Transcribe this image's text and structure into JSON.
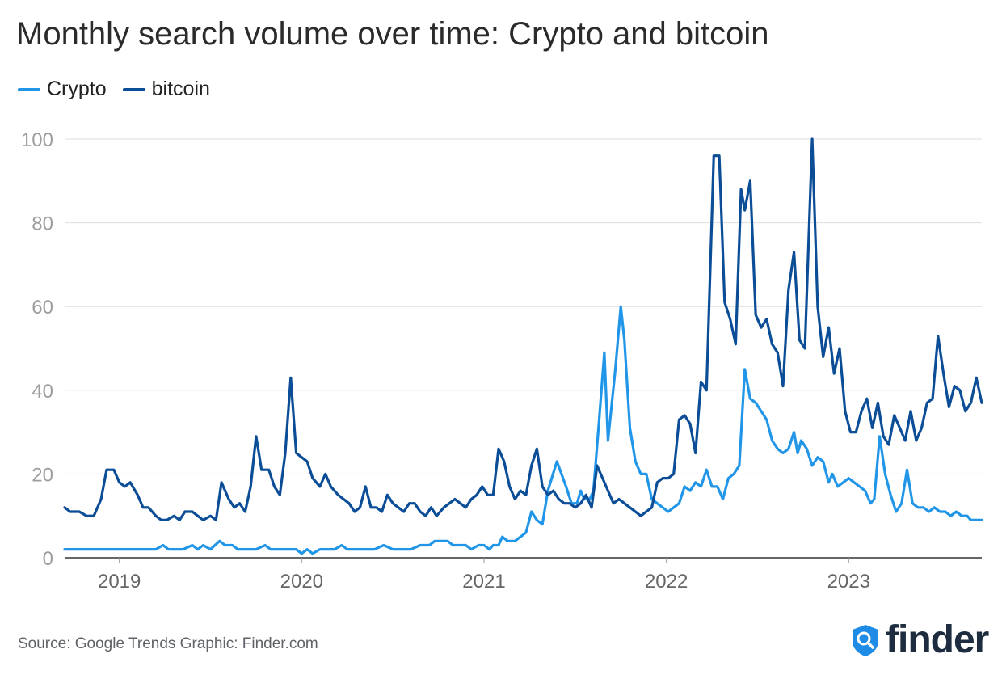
{
  "page": {
    "title": "Monthly search volume over time: Crypto and bitcoin"
  },
  "colors": {
    "crypto": "#2196e8",
    "bitcoin": "#0b4d96",
    "grid": "#dddddd",
    "tick": "#9e9e9e",
    "logo": "#1d2d3f"
  },
  "chart_data": {
    "type": "line",
    "title": "Monthly search volume over time: Crypto and bitcoin",
    "xlabel": "",
    "ylabel": "",
    "ylim": [
      0,
      100
    ],
    "yticks": [
      0,
      20,
      40,
      60,
      80,
      100
    ],
    "xlim": [
      2018.7,
      2023.73
    ],
    "xticks": [
      {
        "label": "2019",
        "value": 2019.0
      },
      {
        "label": "2020",
        "value": 2020.0
      },
      {
        "label": "2021",
        "value": 2021.0
      },
      {
        "label": "2022",
        "value": 2022.0
      },
      {
        "label": "2023",
        "value": 2023.0
      }
    ],
    "grid": true,
    "legend_position": "top-left",
    "series": [
      {
        "name": "Crypto",
        "color": "#2196e8",
        "points": [
          [
            2018.7,
            2
          ],
          [
            2018.8,
            2
          ],
          [
            2018.9,
            2
          ],
          [
            2019.0,
            2
          ],
          [
            2019.1,
            2
          ],
          [
            2019.2,
            2
          ],
          [
            2019.24,
            3
          ],
          [
            2019.27,
            2
          ],
          [
            2019.3,
            2
          ],
          [
            2019.35,
            2
          ],
          [
            2019.4,
            3
          ],
          [
            2019.43,
            2
          ],
          [
            2019.46,
            3
          ],
          [
            2019.5,
            2
          ],
          [
            2019.55,
            4
          ],
          [
            2019.58,
            3
          ],
          [
            2019.62,
            3
          ],
          [
            2019.65,
            2
          ],
          [
            2019.7,
            2
          ],
          [
            2019.75,
            2
          ],
          [
            2019.8,
            3
          ],
          [
            2019.83,
            2
          ],
          [
            2019.9,
            2
          ],
          [
            2019.97,
            2
          ],
          [
            2020.0,
            1
          ],
          [
            2020.03,
            2
          ],
          [
            2020.06,
            1
          ],
          [
            2020.1,
            2
          ],
          [
            2020.18,
            2
          ],
          [
            2020.22,
            3
          ],
          [
            2020.25,
            2
          ],
          [
            2020.3,
            2
          ],
          [
            2020.4,
            2
          ],
          [
            2020.45,
            3
          ],
          [
            2020.5,
            2
          ],
          [
            2020.6,
            2
          ],
          [
            2020.65,
            3
          ],
          [
            2020.7,
            3
          ],
          [
            2020.73,
            4
          ],
          [
            2020.8,
            4
          ],
          [
            2020.83,
            3
          ],
          [
            2020.9,
            3
          ],
          [
            2020.93,
            2
          ],
          [
            2020.97,
            3
          ],
          [
            2021.0,
            3
          ],
          [
            2021.03,
            2
          ],
          [
            2021.05,
            3
          ],
          [
            2021.08,
            3
          ],
          [
            2021.1,
            5
          ],
          [
            2021.13,
            4
          ],
          [
            2021.17,
            4
          ],
          [
            2021.2,
            5
          ],
          [
            2021.23,
            6
          ],
          [
            2021.26,
            11
          ],
          [
            2021.29,
            9
          ],
          [
            2021.32,
            8
          ],
          [
            2021.35,
            16
          ],
          [
            2021.4,
            23
          ],
          [
            2021.45,
            17
          ],
          [
            2021.48,
            13
          ],
          [
            2021.51,
            13
          ],
          [
            2021.53,
            16
          ],
          [
            2021.55,
            14
          ],
          [
            2021.58,
            14
          ],
          [
            2021.6,
            16
          ],
          [
            2021.63,
            32
          ],
          [
            2021.66,
            49
          ],
          [
            2021.68,
            28
          ],
          [
            2021.72,
            45
          ],
          [
            2021.75,
            60
          ],
          [
            2021.77,
            52
          ],
          [
            2021.8,
            31
          ],
          [
            2021.83,
            23
          ],
          [
            2021.86,
            20
          ],
          [
            2021.89,
            20
          ],
          [
            2021.92,
            14
          ],
          [
            2021.95,
            13
          ],
          [
            2021.98,
            12
          ],
          [
            2022.01,
            11
          ],
          [
            2022.04,
            12
          ],
          [
            2022.07,
            13
          ],
          [
            2022.1,
            17
          ],
          [
            2022.13,
            16
          ],
          [
            2022.16,
            18
          ],
          [
            2022.19,
            17
          ],
          [
            2022.22,
            21
          ],
          [
            2022.25,
            17
          ],
          [
            2022.28,
            17
          ],
          [
            2022.31,
            14
          ],
          [
            2022.34,
            19
          ],
          [
            2022.37,
            20
          ],
          [
            2022.4,
            22
          ],
          [
            2022.43,
            45
          ],
          [
            2022.46,
            38
          ],
          [
            2022.49,
            37
          ],
          [
            2022.52,
            35
          ],
          [
            2022.55,
            33
          ],
          [
            2022.58,
            28
          ],
          [
            2022.61,
            26
          ],
          [
            2022.64,
            25
          ],
          [
            2022.67,
            26
          ],
          [
            2022.7,
            30
          ],
          [
            2022.72,
            25
          ],
          [
            2022.74,
            28
          ],
          [
            2022.77,
            26
          ],
          [
            2022.8,
            22
          ],
          [
            2022.83,
            24
          ],
          [
            2022.86,
            23
          ],
          [
            2022.89,
            18
          ],
          [
            2022.91,
            20
          ],
          [
            2022.94,
            17
          ],
          [
            2022.97,
            18
          ],
          [
            2023.0,
            19
          ],
          [
            2023.03,
            18
          ],
          [
            2023.06,
            17
          ],
          [
            2023.09,
            16
          ],
          [
            2023.12,
            13
          ],
          [
            2023.14,
            14
          ],
          [
            2023.17,
            29
          ],
          [
            2023.2,
            20
          ],
          [
            2023.23,
            15
          ],
          [
            2023.26,
            11
          ],
          [
            2023.29,
            13
          ],
          [
            2023.32,
            21
          ],
          [
            2023.35,
            13
          ],
          [
            2023.38,
            12
          ],
          [
            2023.41,
            12
          ],
          [
            2023.44,
            11
          ],
          [
            2023.47,
            12
          ],
          [
            2023.5,
            11
          ],
          [
            2023.53,
            11
          ],
          [
            2023.56,
            10
          ],
          [
            2023.59,
            11
          ],
          [
            2023.62,
            10
          ],
          [
            2023.65,
            10
          ],
          [
            2023.67,
            9
          ],
          [
            2023.7,
            9
          ],
          [
            2023.73,
            9
          ]
        ]
      },
      {
        "name": "bitcoin",
        "color": "#0b4d96",
        "points": [
          [
            2018.7,
            12
          ],
          [
            2018.73,
            11
          ],
          [
            2018.78,
            11
          ],
          [
            2018.82,
            10
          ],
          [
            2018.86,
            10
          ],
          [
            2018.9,
            14
          ],
          [
            2018.93,
            21
          ],
          [
            2018.97,
            21
          ],
          [
            2019.0,
            18
          ],
          [
            2019.03,
            17
          ],
          [
            2019.06,
            18
          ],
          [
            2019.1,
            15
          ],
          [
            2019.13,
            12
          ],
          [
            2019.16,
            12
          ],
          [
            2019.2,
            10
          ],
          [
            2019.23,
            9
          ],
          [
            2019.26,
            9
          ],
          [
            2019.3,
            10
          ],
          [
            2019.33,
            9
          ],
          [
            2019.36,
            11
          ],
          [
            2019.4,
            11
          ],
          [
            2019.43,
            10
          ],
          [
            2019.46,
            9
          ],
          [
            2019.5,
            10
          ],
          [
            2019.53,
            9
          ],
          [
            2019.56,
            18
          ],
          [
            2019.6,
            14
          ],
          [
            2019.63,
            12
          ],
          [
            2019.66,
            13
          ],
          [
            2019.69,
            11
          ],
          [
            2019.72,
            17
          ],
          [
            2019.75,
            29
          ],
          [
            2019.78,
            21
          ],
          [
            2019.82,
            21
          ],
          [
            2019.85,
            17
          ],
          [
            2019.88,
            15
          ],
          [
            2019.91,
            25
          ],
          [
            2019.94,
            43
          ],
          [
            2019.97,
            25
          ],
          [
            2020.0,
            24
          ],
          [
            2020.03,
            23
          ],
          [
            2020.06,
            19
          ],
          [
            2020.1,
            17
          ],
          [
            2020.13,
            20
          ],
          [
            2020.16,
            17
          ],
          [
            2020.2,
            15
          ],
          [
            2020.23,
            14
          ],
          [
            2020.26,
            13
          ],
          [
            2020.29,
            11
          ],
          [
            2020.32,
            12
          ],
          [
            2020.35,
            17
          ],
          [
            2020.38,
            12
          ],
          [
            2020.41,
            12
          ],
          [
            2020.44,
            11
          ],
          [
            2020.47,
            15
          ],
          [
            2020.5,
            13
          ],
          [
            2020.53,
            12
          ],
          [
            2020.56,
            11
          ],
          [
            2020.59,
            13
          ],
          [
            2020.62,
            13
          ],
          [
            2020.65,
            11
          ],
          [
            2020.68,
            10
          ],
          [
            2020.71,
            12
          ],
          [
            2020.74,
            10
          ],
          [
            2020.78,
            12
          ],
          [
            2020.81,
            13
          ],
          [
            2020.84,
            14
          ],
          [
            2020.87,
            13
          ],
          [
            2020.9,
            12
          ],
          [
            2020.93,
            14
          ],
          [
            2020.96,
            15
          ],
          [
            2020.99,
            17
          ],
          [
            2021.02,
            15
          ],
          [
            2021.05,
            15
          ],
          [
            2021.08,
            26
          ],
          [
            2021.11,
            23
          ],
          [
            2021.14,
            17
          ],
          [
            2021.17,
            14
          ],
          [
            2021.2,
            16
          ],
          [
            2021.23,
            15
          ],
          [
            2021.26,
            22
          ],
          [
            2021.29,
            26
          ],
          [
            2021.32,
            17
          ],
          [
            2021.35,
            15
          ],
          [
            2021.38,
            16
          ],
          [
            2021.41,
            14
          ],
          [
            2021.44,
            13
          ],
          [
            2021.47,
            13
          ],
          [
            2021.5,
            12
          ],
          [
            2021.53,
            13
          ],
          [
            2021.56,
            15
          ],
          [
            2021.59,
            12
          ],
          [
            2021.62,
            22
          ],
          [
            2021.65,
            19
          ],
          [
            2021.68,
            16
          ],
          [
            2021.71,
            13
          ],
          [
            2021.74,
            14
          ],
          [
            2021.77,
            13
          ],
          [
            2021.8,
            12
          ],
          [
            2021.83,
            11
          ],
          [
            2021.86,
            10
          ],
          [
            2021.89,
            11
          ],
          [
            2021.92,
            12
          ],
          [
            2021.95,
            18
          ],
          [
            2021.98,
            19
          ],
          [
            2022.01,
            19
          ],
          [
            2022.04,
            20
          ],
          [
            2022.07,
            33
          ],
          [
            2022.1,
            34
          ],
          [
            2022.13,
            32
          ],
          [
            2022.16,
            25
          ],
          [
            2022.19,
            42
          ],
          [
            2022.22,
            40
          ],
          [
            2022.26,
            96
          ],
          [
            2022.29,
            96
          ],
          [
            2022.32,
            61
          ],
          [
            2022.35,
            57
          ],
          [
            2022.38,
            51
          ],
          [
            2022.41,
            88
          ],
          [
            2022.43,
            83
          ],
          [
            2022.46,
            90
          ],
          [
            2022.49,
            58
          ],
          [
            2022.52,
            55
          ],
          [
            2022.55,
            57
          ],
          [
            2022.58,
            51
          ],
          [
            2022.61,
            49
          ],
          [
            2022.64,
            41
          ],
          [
            2022.67,
            64
          ],
          [
            2022.7,
            73
          ],
          [
            2022.73,
            52
          ],
          [
            2022.76,
            50
          ],
          [
            2022.8,
            100
          ],
          [
            2022.83,
            60
          ],
          [
            2022.86,
            48
          ],
          [
            2022.89,
            55
          ],
          [
            2022.92,
            44
          ],
          [
            2022.95,
            50
          ],
          [
            2022.98,
            35
          ],
          [
            2023.01,
            30
          ],
          [
            2023.04,
            30
          ],
          [
            2023.07,
            35
          ],
          [
            2023.1,
            38
          ],
          [
            2023.13,
            31
          ],
          [
            2023.16,
            37
          ],
          [
            2023.19,
            29
          ],
          [
            2023.22,
            27
          ],
          [
            2023.25,
            34
          ],
          [
            2023.28,
            31
          ],
          [
            2023.31,
            28
          ],
          [
            2023.34,
            35
          ],
          [
            2023.37,
            28
          ],
          [
            2023.4,
            31
          ],
          [
            2023.43,
            37
          ],
          [
            2023.46,
            38
          ],
          [
            2023.49,
            53
          ],
          [
            2023.52,
            44
          ],
          [
            2023.55,
            36
          ],
          [
            2023.58,
            41
          ],
          [
            2023.61,
            40
          ],
          [
            2023.64,
            35
          ],
          [
            2023.67,
            37
          ],
          [
            2023.7,
            43
          ],
          [
            2023.73,
            37
          ]
        ]
      }
    ]
  },
  "legend": [
    {
      "label": "Crypto",
      "color": "#2196e8"
    },
    {
      "label": "bitcoin",
      "color": "#0b4d96"
    }
  ],
  "footer": {
    "source": "Source: Google Trends Graphic: Finder.com",
    "logo_text": "finder"
  }
}
